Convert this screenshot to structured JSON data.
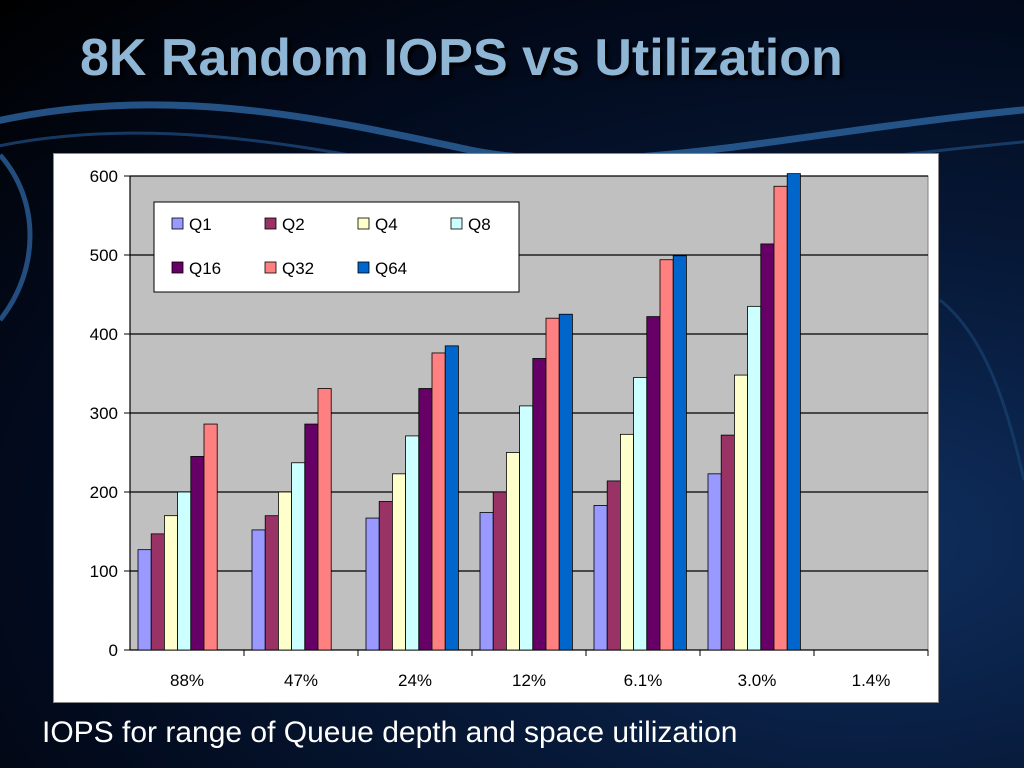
{
  "slide": {
    "title": "8K Random IOPS vs Utilization",
    "caption": "IOPS for range of Queue depth and space utilization"
  },
  "chart_data": {
    "type": "bar",
    "title": "",
    "xlabel": "",
    "ylabel": "",
    "categories": [
      "88%",
      "47%",
      "24%",
      "12%",
      "6.1%",
      "3.0%",
      "1.4%"
    ],
    "ylim": [
      0,
      600
    ],
    "yticks": [
      0,
      100,
      200,
      300,
      400,
      500,
      600
    ],
    "grid": true,
    "legend_position": "top-left",
    "series": [
      {
        "name": "Q1",
        "color": "#9999ff",
        "values": [
          127,
          152,
          167,
          174,
          183,
          223,
          null
        ]
      },
      {
        "name": "Q2",
        "color": "#993366",
        "values": [
          147,
          170,
          188,
          200,
          214,
          272,
          null
        ]
      },
      {
        "name": "Q4",
        "color": "#ffffcc",
        "values": [
          170,
          200,
          223,
          250,
          273,
          348,
          null
        ]
      },
      {
        "name": "Q8",
        "color": "#ccffff",
        "values": [
          200,
          237,
          271,
          309,
          345,
          435,
          null
        ]
      },
      {
        "name": "Q16",
        "color": "#660066",
        "values": [
          245,
          286,
          331,
          369,
          422,
          514,
          null
        ]
      },
      {
        "name": "Q32",
        "color": "#ff8080",
        "values": [
          286,
          331,
          376,
          420,
          494,
          587,
          null
        ]
      },
      {
        "name": "Q64",
        "color": "#0066cc",
        "values": [
          null,
          null,
          385,
          425,
          499,
          603,
          null
        ]
      }
    ],
    "plot_background": "#c0c0c0"
  }
}
